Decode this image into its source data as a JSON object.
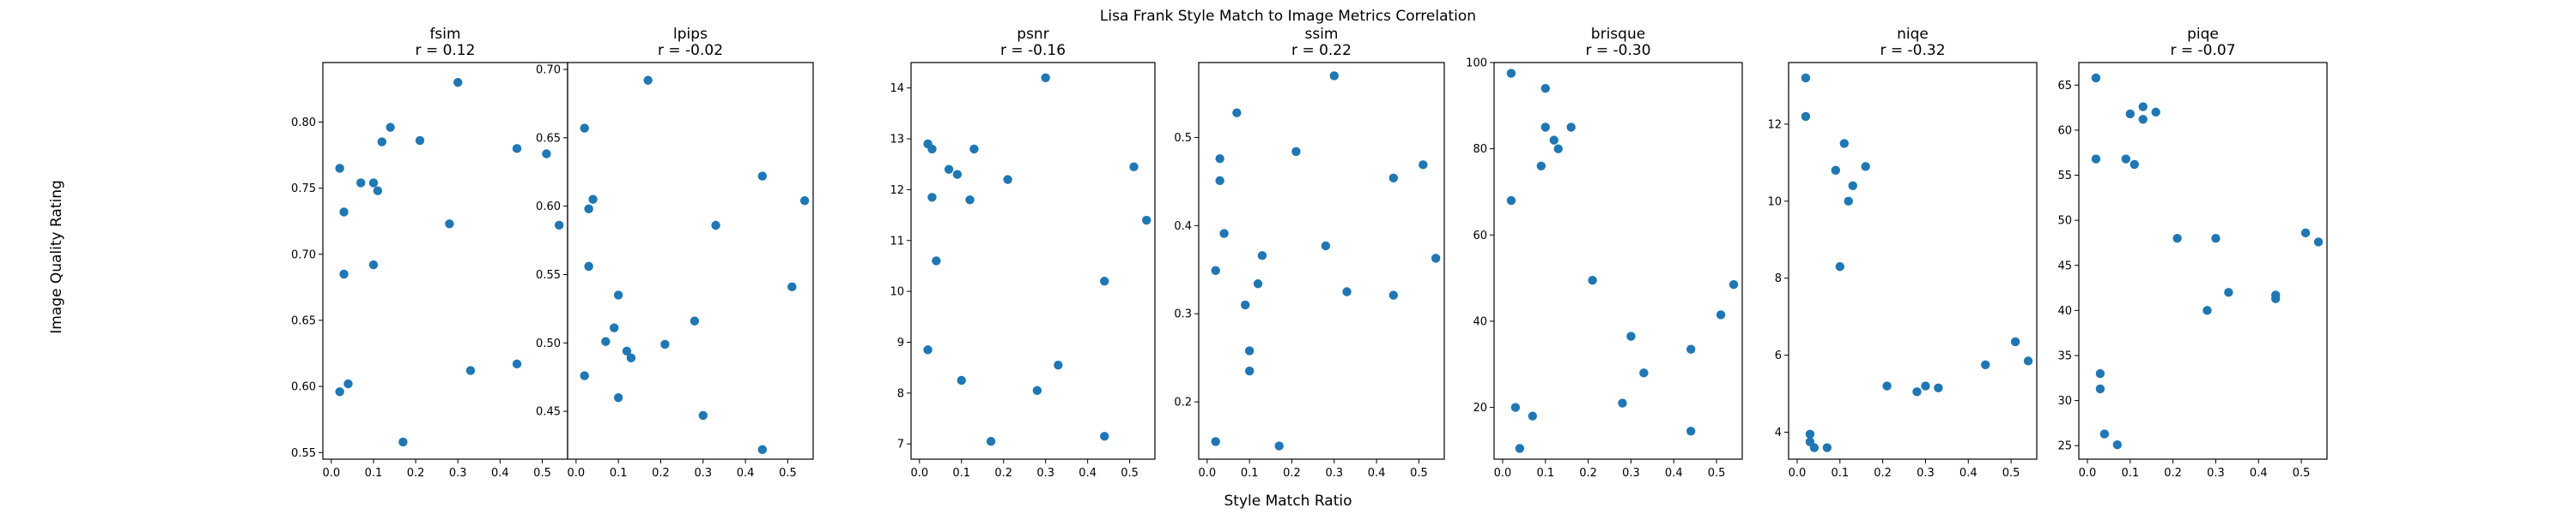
{
  "figure": {
    "suptitle": "Lisa Frank Style Match to Image Metrics Correlation",
    "xlabel": "Style Match Ratio",
    "ylabel": "Image Quality Rating"
  },
  "colors": {
    "marker": "#1f77b4",
    "axes": "#000000",
    "background": "#ffffff"
  },
  "chart_data": [
    {
      "type": "scatter",
      "title": "fsim",
      "subtitle": "r = 0.12",
      "xlim": [
        -0.02,
        0.56
      ],
      "xticks": [
        0.0,
        0.1,
        0.2,
        0.3,
        0.4,
        0.5
      ],
      "ylim": [
        0.545,
        0.845
      ],
      "yticks": [
        0.55,
        0.6,
        0.65,
        0.7,
        0.75,
        0.8
      ],
      "x": [
        0.02,
        0.02,
        0.03,
        0.03,
        0.04,
        0.07,
        0.1,
        0.1,
        0.11,
        0.12,
        0.14,
        0.17,
        0.21,
        0.28,
        0.3,
        0.33,
        0.44,
        0.44,
        0.51,
        0.54
      ],
      "y": [
        0.765,
        0.596,
        0.732,
        0.685,
        0.602,
        0.754,
        0.754,
        0.692,
        0.748,
        0.785,
        0.796,
        0.558,
        0.786,
        0.723,
        0.83,
        0.612,
        0.617,
        0.78,
        0.776,
        0.722
      ]
    },
    {
      "type": "scatter",
      "title": "lpips",
      "subtitle": "r = -0.02",
      "xlim": [
        -0.02,
        0.56
      ],
      "xticks": [
        0.0,
        0.1,
        0.2,
        0.3,
        0.4,
        0.5
      ],
      "ylim": [
        0.415,
        0.705
      ],
      "yticks": [
        0.45,
        0.5,
        0.55,
        0.6,
        0.65,
        0.7
      ],
      "x": [
        0.02,
        0.02,
        0.03,
        0.03,
        0.04,
        0.07,
        0.09,
        0.1,
        0.1,
        0.12,
        0.13,
        0.17,
        0.21,
        0.28,
        0.3,
        0.33,
        0.44,
        0.44,
        0.51,
        0.54
      ],
      "y": [
        0.657,
        0.476,
        0.598,
        0.556,
        0.605,
        0.501,
        0.511,
        0.535,
        0.46,
        0.494,
        0.489,
        0.692,
        0.499,
        0.516,
        0.447,
        0.586,
        0.622,
        0.422,
        0.541,
        0.604
      ]
    },
    {
      "type": "scatter",
      "title": "psnr",
      "subtitle": "r = -0.16",
      "xlim": [
        -0.02,
        0.56
      ],
      "xticks": [
        0.0,
        0.1,
        0.2,
        0.3,
        0.4,
        0.5
      ],
      "ylim": [
        6.7,
        14.5
      ],
      "yticks": [
        7,
        8,
        9,
        10,
        11,
        12,
        13,
        14
      ],
      "x": [
        0.02,
        0.02,
        0.03,
        0.03,
        0.04,
        0.07,
        0.09,
        0.1,
        0.12,
        0.13,
        0.17,
        0.21,
        0.28,
        0.3,
        0.33,
        0.44,
        0.44,
        0.51,
        0.54
      ],
      "y": [
        12.9,
        8.85,
        12.8,
        11.85,
        10.6,
        12.4,
        12.3,
        8.25,
        11.8,
        12.8,
        7.05,
        12.2,
        8.05,
        14.2,
        8.55,
        7.15,
        10.2,
        12.45,
        11.4
      ]
    },
    {
      "type": "scatter",
      "title": "ssim",
      "subtitle": "r = 0.22",
      "xlim": [
        -0.02,
        0.56
      ],
      "xticks": [
        0.0,
        0.1,
        0.2,
        0.3,
        0.4,
        0.5
      ],
      "ylim": [
        0.135,
        0.585
      ],
      "yticks": [
        0.2,
        0.3,
        0.4,
        0.5
      ],
      "x": [
        0.02,
        0.02,
        0.03,
        0.03,
        0.04,
        0.07,
        0.09,
        0.1,
        0.1,
        0.12,
        0.13,
        0.17,
        0.21,
        0.28,
        0.3,
        0.33,
        0.44,
        0.44,
        0.51,
        0.54
      ],
      "y": [
        0.349,
        0.155,
        0.476,
        0.451,
        0.391,
        0.528,
        0.31,
        0.258,
        0.235,
        0.334,
        0.366,
        0.15,
        0.484,
        0.377,
        0.57,
        0.325,
        0.454,
        0.321,
        0.469,
        0.363
      ]
    },
    {
      "type": "scatter",
      "title": "brisque",
      "subtitle": "r = -0.30",
      "xlim": [
        -0.02,
        0.56
      ],
      "xticks": [
        0.0,
        0.1,
        0.2,
        0.3,
        0.4,
        0.5
      ],
      "ylim": [
        8,
        100
      ],
      "yticks": [
        20,
        40,
        60,
        80,
        100
      ],
      "x": [
        0.02,
        0.02,
        0.03,
        0.04,
        0.07,
        0.09,
        0.1,
        0.1,
        0.12,
        0.13,
        0.16,
        0.21,
        0.28,
        0.3,
        0.33,
        0.44,
        0.44,
        0.51,
        0.54
      ],
      "y": [
        97.5,
        68.0,
        20.0,
        10.5,
        18.0,
        76.0,
        85.0,
        94.0,
        82.0,
        80.0,
        85.0,
        49.5,
        21.0,
        36.5,
        28.0,
        33.5,
        14.5,
        41.5,
        48.5
      ]
    },
    {
      "type": "scatter",
      "title": "niqe",
      "subtitle": "r = -0.32",
      "xlim": [
        -0.02,
        0.56
      ],
      "xticks": [
        0.0,
        0.1,
        0.2,
        0.3,
        0.4,
        0.5
      ],
      "ylim": [
        3.3,
        13.6
      ],
      "yticks": [
        4,
        6,
        8,
        10,
        12
      ],
      "x": [
        0.02,
        0.02,
        0.03,
        0.03,
        0.04,
        0.07,
        0.09,
        0.1,
        0.11,
        0.12,
        0.13,
        0.16,
        0.21,
        0.28,
        0.3,
        0.33,
        0.44,
        0.51,
        0.54
      ],
      "y": [
        13.2,
        12.2,
        3.95,
        3.75,
        3.6,
        3.6,
        10.8,
        8.3,
        11.5,
        10.0,
        10.4,
        10.9,
        5.2,
        5.05,
        5.2,
        5.15,
        5.75,
        6.35,
        5.85
      ]
    },
    {
      "type": "scatter",
      "title": "piqe",
      "subtitle": "r = -0.07",
      "xlim": [
        -0.02,
        0.56
      ],
      "xticks": [
        0.0,
        0.1,
        0.2,
        0.3,
        0.4,
        0.5
      ],
      "ylim": [
        23.5,
        67.5
      ],
      "yticks": [
        25,
        30,
        35,
        40,
        45,
        50,
        55,
        60,
        65
      ],
      "x": [
        0.02,
        0.02,
        0.03,
        0.03,
        0.04,
        0.07,
        0.09,
        0.1,
        0.11,
        0.13,
        0.13,
        0.16,
        0.21,
        0.28,
        0.3,
        0.33,
        0.44,
        0.44,
        0.51,
        0.54
      ],
      "y": [
        65.8,
        56.8,
        33.0,
        31.3,
        26.3,
        25.1,
        56.8,
        61.8,
        56.2,
        62.6,
        61.2,
        62.0,
        48.0,
        40.0,
        48.0,
        42.0,
        41.7,
        41.3,
        48.6,
        47.6
      ]
    }
  ]
}
